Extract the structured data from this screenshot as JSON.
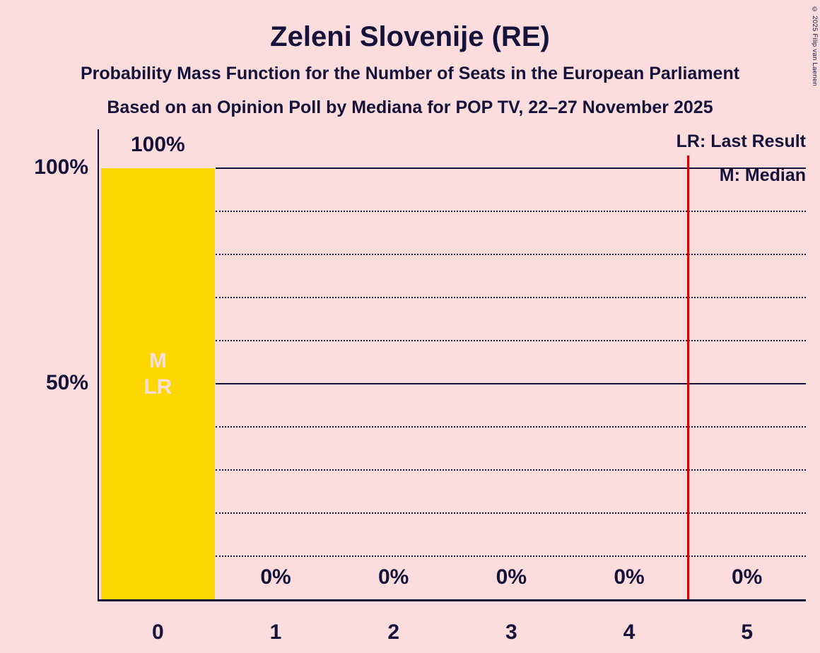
{
  "header": {
    "title": "Zeleni Slovenije (RE)",
    "subtitle1": "Probability Mass Function for the Number of Seats in the European Parliament",
    "subtitle2": "Based on an Opinion Poll by Mediana for POP TV, 22–27 November 2025"
  },
  "legend": {
    "lr_label": "LR: Last Result",
    "m_label": "M: Median"
  },
  "copyright": "© 2025 Filip van Laenen",
  "chart_data": {
    "type": "bar",
    "title": "Zeleni Slovenije (RE)",
    "categories": [
      "0",
      "1",
      "2",
      "3",
      "4",
      "5"
    ],
    "values": [
      100,
      0,
      0,
      0,
      0,
      0
    ],
    "value_labels": [
      "100%",
      "0%",
      "0%",
      "0%",
      "0%",
      "0%"
    ],
    "ylim": [
      0,
      100
    ],
    "yticks": [
      {
        "value": 100,
        "label": "100%"
      },
      {
        "value": 50,
        "label": "50%"
      }
    ],
    "solid_gridlines": [
      100,
      50
    ],
    "dotted_gridlines": [
      90,
      80,
      70,
      60,
      40,
      30,
      20,
      10
    ],
    "median": 0,
    "last_result": 0,
    "annotations": {
      "median": "M",
      "last_result": "LR"
    },
    "reference_line_x": 4.5,
    "legend_position": "top-right",
    "grid": "horizontal-dotted",
    "colors": {
      "bar": "#ffd700",
      "background": "#fbdddd",
      "text": "#16123a",
      "reference_line": "#dc0000",
      "bar_annotation_text": "#fbdddd"
    }
  }
}
